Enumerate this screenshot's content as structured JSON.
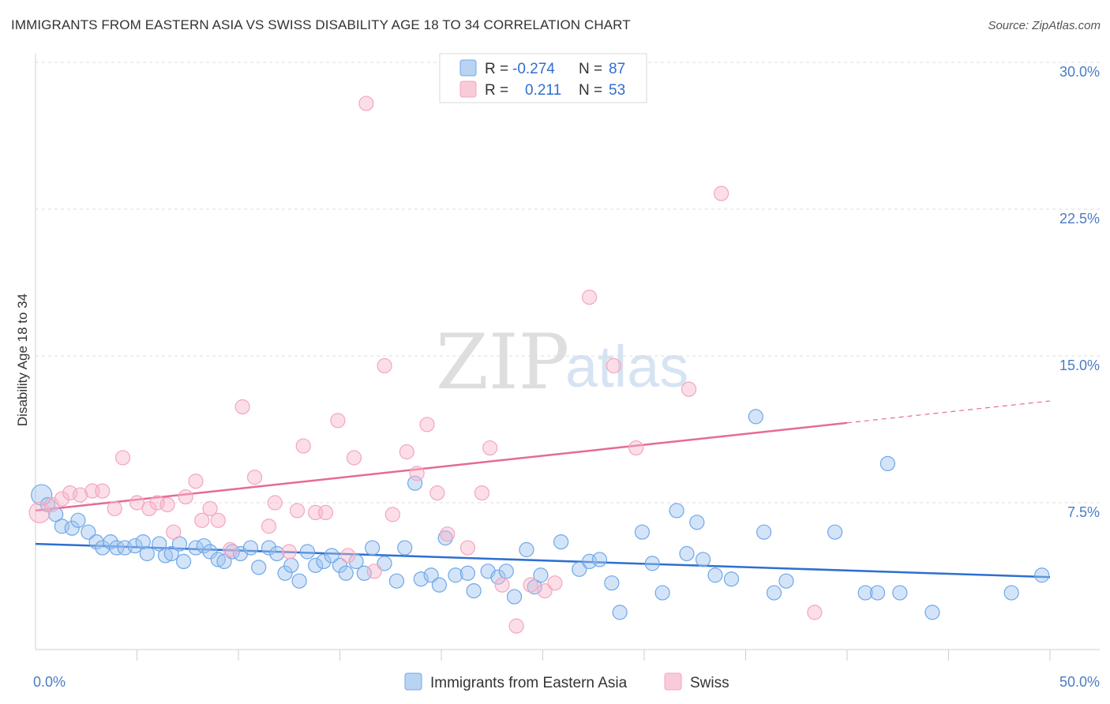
{
  "title": "IMMIGRANTS FROM EASTERN ASIA VS SWISS DISABILITY AGE 18 TO 34 CORRELATION CHART",
  "source": "Source: ZipAtlas.com",
  "watermark": {
    "zip": "ZIP",
    "atlas": "atlas"
  },
  "legend": {
    "rows": [
      {
        "r_label": "R =",
        "r_value": "-0.274",
        "n_label": "N =",
        "n_value": "87"
      },
      {
        "r_label": "R =",
        "r_value": "0.211",
        "n_label": "N =",
        "n_value": "53"
      }
    ]
  },
  "bottom_legend": [
    "Immigrants from Eastern Asia",
    "Swiss"
  ],
  "chart_data": {
    "type": "scatter",
    "xlabel": "",
    "ylabel": "Disability Age 18 to 34",
    "xlim": [
      0,
      50
    ],
    "ylim": [
      0,
      30
    ],
    "x_tick_labels": [
      {
        "value": 0,
        "label": "0.0%"
      },
      {
        "value": 50,
        "label": "50.0%"
      }
    ],
    "y_ticks": [
      {
        "value": 7.5,
        "label": "7.5%"
      },
      {
        "value": 15,
        "label": "15.0%"
      },
      {
        "value": 22.5,
        "label": "22.5%"
      },
      {
        "value": 30,
        "label": "30.0%"
      }
    ],
    "x_minor_ticks": [
      5,
      10,
      15,
      20,
      25,
      30,
      35,
      40,
      45,
      50
    ],
    "grid": true,
    "legend_position": "top-center",
    "colors": {
      "immigrants": "#6fa8e8",
      "swiss": "#f4a6be",
      "immigrants_line": "#2e6fd0",
      "swiss_line": "#e56b95"
    },
    "series": [
      {
        "name": "Immigrants from Eastern Asia",
        "key": "immigrants",
        "trend": {
          "x": [
            0,
            50
          ],
          "y": [
            5.4,
            3.7
          ],
          "dashed_from": null
        },
        "points": [
          [
            0.3,
            7.9
          ],
          [
            0.6,
            7.4
          ],
          [
            1.0,
            6.9
          ],
          [
            1.3,
            6.3
          ],
          [
            1.8,
            6.2
          ],
          [
            2.1,
            6.6
          ],
          [
            2.6,
            6.0
          ],
          [
            3.0,
            5.5
          ],
          [
            3.3,
            5.2
          ],
          [
            3.7,
            5.5
          ],
          [
            4.0,
            5.2
          ],
          [
            4.4,
            5.2
          ],
          [
            4.9,
            5.3
          ],
          [
            5.3,
            5.5
          ],
          [
            5.5,
            4.9
          ],
          [
            6.1,
            5.4
          ],
          [
            6.4,
            4.8
          ],
          [
            6.7,
            4.9
          ],
          [
            7.1,
            5.4
          ],
          [
            7.3,
            4.5
          ],
          [
            7.9,
            5.2
          ],
          [
            8.3,
            5.3
          ],
          [
            8.6,
            5.0
          ],
          [
            9.0,
            4.6
          ],
          [
            9.3,
            4.5
          ],
          [
            9.7,
            5.0
          ],
          [
            10.1,
            4.9
          ],
          [
            10.6,
            5.2
          ],
          [
            11.0,
            4.2
          ],
          [
            11.5,
            5.2
          ],
          [
            11.9,
            4.9
          ],
          [
            12.3,
            3.9
          ],
          [
            12.6,
            4.3
          ],
          [
            13.0,
            3.5
          ],
          [
            13.4,
            5.0
          ],
          [
            13.8,
            4.3
          ],
          [
            14.2,
            4.5
          ],
          [
            14.6,
            4.8
          ],
          [
            15.0,
            4.3
          ],
          [
            15.3,
            3.9
          ],
          [
            15.8,
            4.5
          ],
          [
            16.2,
            3.9
          ],
          [
            16.6,
            5.2
          ],
          [
            17.2,
            4.4
          ],
          [
            17.8,
            3.5
          ],
          [
            18.2,
            5.2
          ],
          [
            18.7,
            8.5
          ],
          [
            19.0,
            3.6
          ],
          [
            19.5,
            3.8
          ],
          [
            19.9,
            3.3
          ],
          [
            20.2,
            5.7
          ],
          [
            20.7,
            3.8
          ],
          [
            21.3,
            3.9
          ],
          [
            21.6,
            3.0
          ],
          [
            22.3,
            4.0
          ],
          [
            22.8,
            3.7
          ],
          [
            23.2,
            4.0
          ],
          [
            23.6,
            2.7
          ],
          [
            24.2,
            5.1
          ],
          [
            24.6,
            3.2
          ],
          [
            24.9,
            3.8
          ],
          [
            25.9,
            5.5
          ],
          [
            26.8,
            4.1
          ],
          [
            27.3,
            4.5
          ],
          [
            27.8,
            4.6
          ],
          [
            28.4,
            3.4
          ],
          [
            28.8,
            1.9
          ],
          [
            29.9,
            6.0
          ],
          [
            30.4,
            4.4
          ],
          [
            30.9,
            2.9
          ],
          [
            31.6,
            7.1
          ],
          [
            32.1,
            4.9
          ],
          [
            32.6,
            6.5
          ],
          [
            32.9,
            4.6
          ],
          [
            33.5,
            3.8
          ],
          [
            34.3,
            3.6
          ],
          [
            35.5,
            11.9
          ],
          [
            35.9,
            6.0
          ],
          [
            36.4,
            2.9
          ],
          [
            37.0,
            3.5
          ],
          [
            39.4,
            6.0
          ],
          [
            40.9,
            2.9
          ],
          [
            41.5,
            2.9
          ],
          [
            42.0,
            9.5
          ],
          [
            42.6,
            2.9
          ],
          [
            44.2,
            1.9
          ],
          [
            48.1,
            2.9
          ],
          [
            49.6,
            3.8
          ]
        ]
      },
      {
        "name": "Swiss",
        "key": "swiss",
        "trend": {
          "x": [
            0,
            50
          ],
          "y": [
            7.1,
            12.7
          ],
          "dashed_from": 40
        },
        "points": [
          [
            0.2,
            7.0
          ],
          [
            0.8,
            7.4
          ],
          [
            1.3,
            7.7
          ],
          [
            1.7,
            8.0
          ],
          [
            2.2,
            7.9
          ],
          [
            2.8,
            8.1
          ],
          [
            3.3,
            8.1
          ],
          [
            3.9,
            7.2
          ],
          [
            4.3,
            9.8
          ],
          [
            5.0,
            7.5
          ],
          [
            5.6,
            7.2
          ],
          [
            6.0,
            7.5
          ],
          [
            6.5,
            7.4
          ],
          [
            6.8,
            6.0
          ],
          [
            7.4,
            7.8
          ],
          [
            7.9,
            8.6
          ],
          [
            8.2,
            6.6
          ],
          [
            8.6,
            7.2
          ],
          [
            9.0,
            6.6
          ],
          [
            9.6,
            5.1
          ],
          [
            10.2,
            12.4
          ],
          [
            10.8,
            8.8
          ],
          [
            11.5,
            6.3
          ],
          [
            11.8,
            7.5
          ],
          [
            12.5,
            5.0
          ],
          [
            12.9,
            7.1
          ],
          [
            13.2,
            10.4
          ],
          [
            13.8,
            7.0
          ],
          [
            14.3,
            7.0
          ],
          [
            14.9,
            11.7
          ],
          [
            15.4,
            4.8
          ],
          [
            15.7,
            9.8
          ],
          [
            16.3,
            27.9
          ],
          [
            16.7,
            4.0
          ],
          [
            17.2,
            14.5
          ],
          [
            17.6,
            6.9
          ],
          [
            18.3,
            10.1
          ],
          [
            18.8,
            9.0
          ],
          [
            19.3,
            11.5
          ],
          [
            19.8,
            8.0
          ],
          [
            20.3,
            5.9
          ],
          [
            21.3,
            5.2
          ],
          [
            22.0,
            8.0
          ],
          [
            22.4,
            10.3
          ],
          [
            23.0,
            3.3
          ],
          [
            23.7,
            1.2
          ],
          [
            24.4,
            3.3
          ],
          [
            25.1,
            3.0
          ],
          [
            25.6,
            3.4
          ],
          [
            27.3,
            18.0
          ],
          [
            28.5,
            14.5
          ],
          [
            29.6,
            10.3
          ],
          [
            32.2,
            13.3
          ],
          [
            33.8,
            23.3
          ],
          [
            38.4,
            1.9
          ]
        ]
      }
    ]
  }
}
